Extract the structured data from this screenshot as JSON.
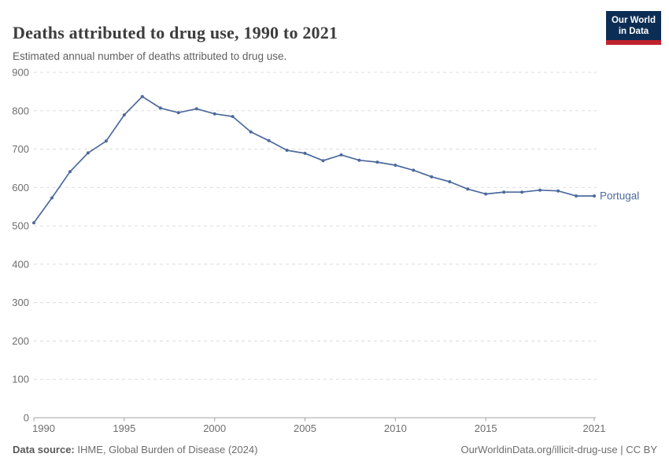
{
  "header": {
    "title": "Deaths attributed to drug use, 1990 to 2021",
    "subtitle": "Estimated annual number of deaths attributed to drug use."
  },
  "logo": {
    "line1": "Our World",
    "line2": "in Data",
    "bg_color": "#0d2e54",
    "accent_color": "#c0222e"
  },
  "chart_data": {
    "type": "line",
    "title": "Deaths attributed to drug use, 1990 to 2021",
    "subtitle": "Estimated annual number of deaths attributed to drug use.",
    "x": [
      1990,
      1991,
      1992,
      1993,
      1994,
      1995,
      1996,
      1997,
      1998,
      1999,
      2000,
      2001,
      2002,
      2003,
      2004,
      2005,
      2006,
      2007,
      2008,
      2009,
      2010,
      2011,
      2012,
      2013,
      2014,
      2015,
      2016,
      2017,
      2018,
      2019,
      2020,
      2021
    ],
    "series": [
      {
        "name": "Portugal",
        "color": "#4C6A9C",
        "values": [
          508,
          573,
          641,
          690,
          721,
          789,
          837,
          807,
          795,
          805,
          792,
          785,
          745,
          722,
          697,
          689,
          670,
          685,
          671,
          666,
          658,
          645,
          628,
          615,
          596,
          583,
          588,
          588,
          593,
          591,
          578,
          578
        ]
      }
    ],
    "xlabel": "",
    "ylabel": "",
    "ylim": [
      0,
      900
    ],
    "yticks": [
      0,
      100,
      200,
      300,
      400,
      500,
      600,
      700,
      800,
      900
    ],
    "xticks": [
      1990,
      1995,
      2000,
      2005,
      2010,
      2015,
      2021
    ],
    "grid": "horizontal-dashed",
    "legend_position": "end-of-line",
    "colors": {
      "grid_line": "#dcdcdc",
      "axis_line": "#a3a3a3",
      "tick_label": "#6e6e6e"
    }
  },
  "footer": {
    "source_label": "Data source:",
    "source_text": " IHME, Global Burden of Disease (2024)",
    "attribution": "OurWorldinData.org/illicit-drug-use | CC BY"
  }
}
